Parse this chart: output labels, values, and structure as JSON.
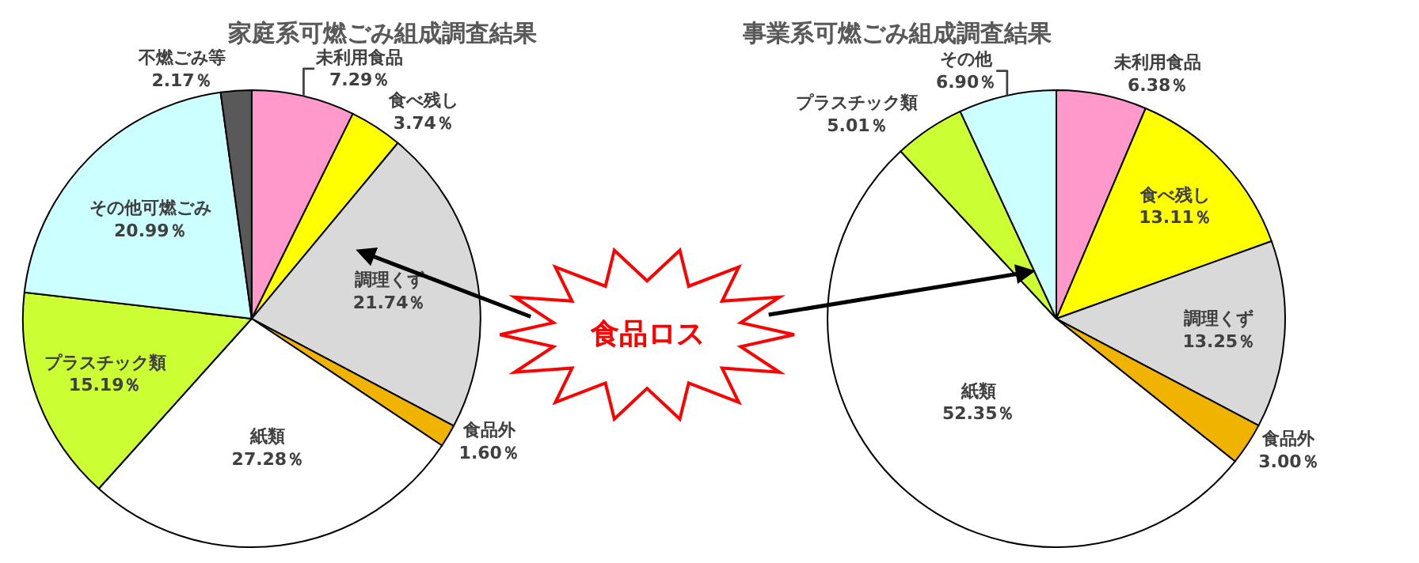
{
  "chart_data": [
    {
      "type": "pie",
      "title": "家庭系可燃ごみ組成調査結果",
      "categories": [
        "未利用食品",
        "食べ残し",
        "調理くず",
        "食品外",
        "紙類",
        "プラスチック類",
        "その他可燃ごみ",
        "不燃ごみ等"
      ],
      "values": [
        7.29,
        3.74,
        21.74,
        1.6,
        27.28,
        15.19,
        20.99,
        2.17
      ],
      "value_labels": [
        "7.29％",
        "3.74％",
        "21.74％",
        "1.60％",
        "27.28％",
        "15.19％",
        "20.99％",
        "2.17％"
      ],
      "colors": [
        "#ff99cc",
        "#ffff00",
        "#d9d9d9",
        "#f0b400",
        "#ffffff",
        "#ccff33",
        "#ccffff",
        "#595959"
      ],
      "annotations": [
        "食品ロス"
      ]
    },
    {
      "type": "pie",
      "title": "事業系可燃ごみ組成調査結果",
      "categories": [
        "未利用食品",
        "食べ残し",
        "調理くず",
        "食品外",
        "紙類",
        "プラスチック類",
        "その他"
      ],
      "values": [
        6.38,
        13.11,
        13.25,
        3.0,
        52.35,
        5.01,
        6.9
      ],
      "value_labels": [
        "6.38％",
        "13.11％",
        "13.25％",
        "3.00％",
        "52.35％",
        "5.01％",
        "6.90％"
      ],
      "colors": [
        "#ff99cc",
        "#ffff00",
        "#d9d9d9",
        "#f0b400",
        "#ffffff",
        "#ccff33",
        "#ccffff"
      ]
    }
  ]
}
